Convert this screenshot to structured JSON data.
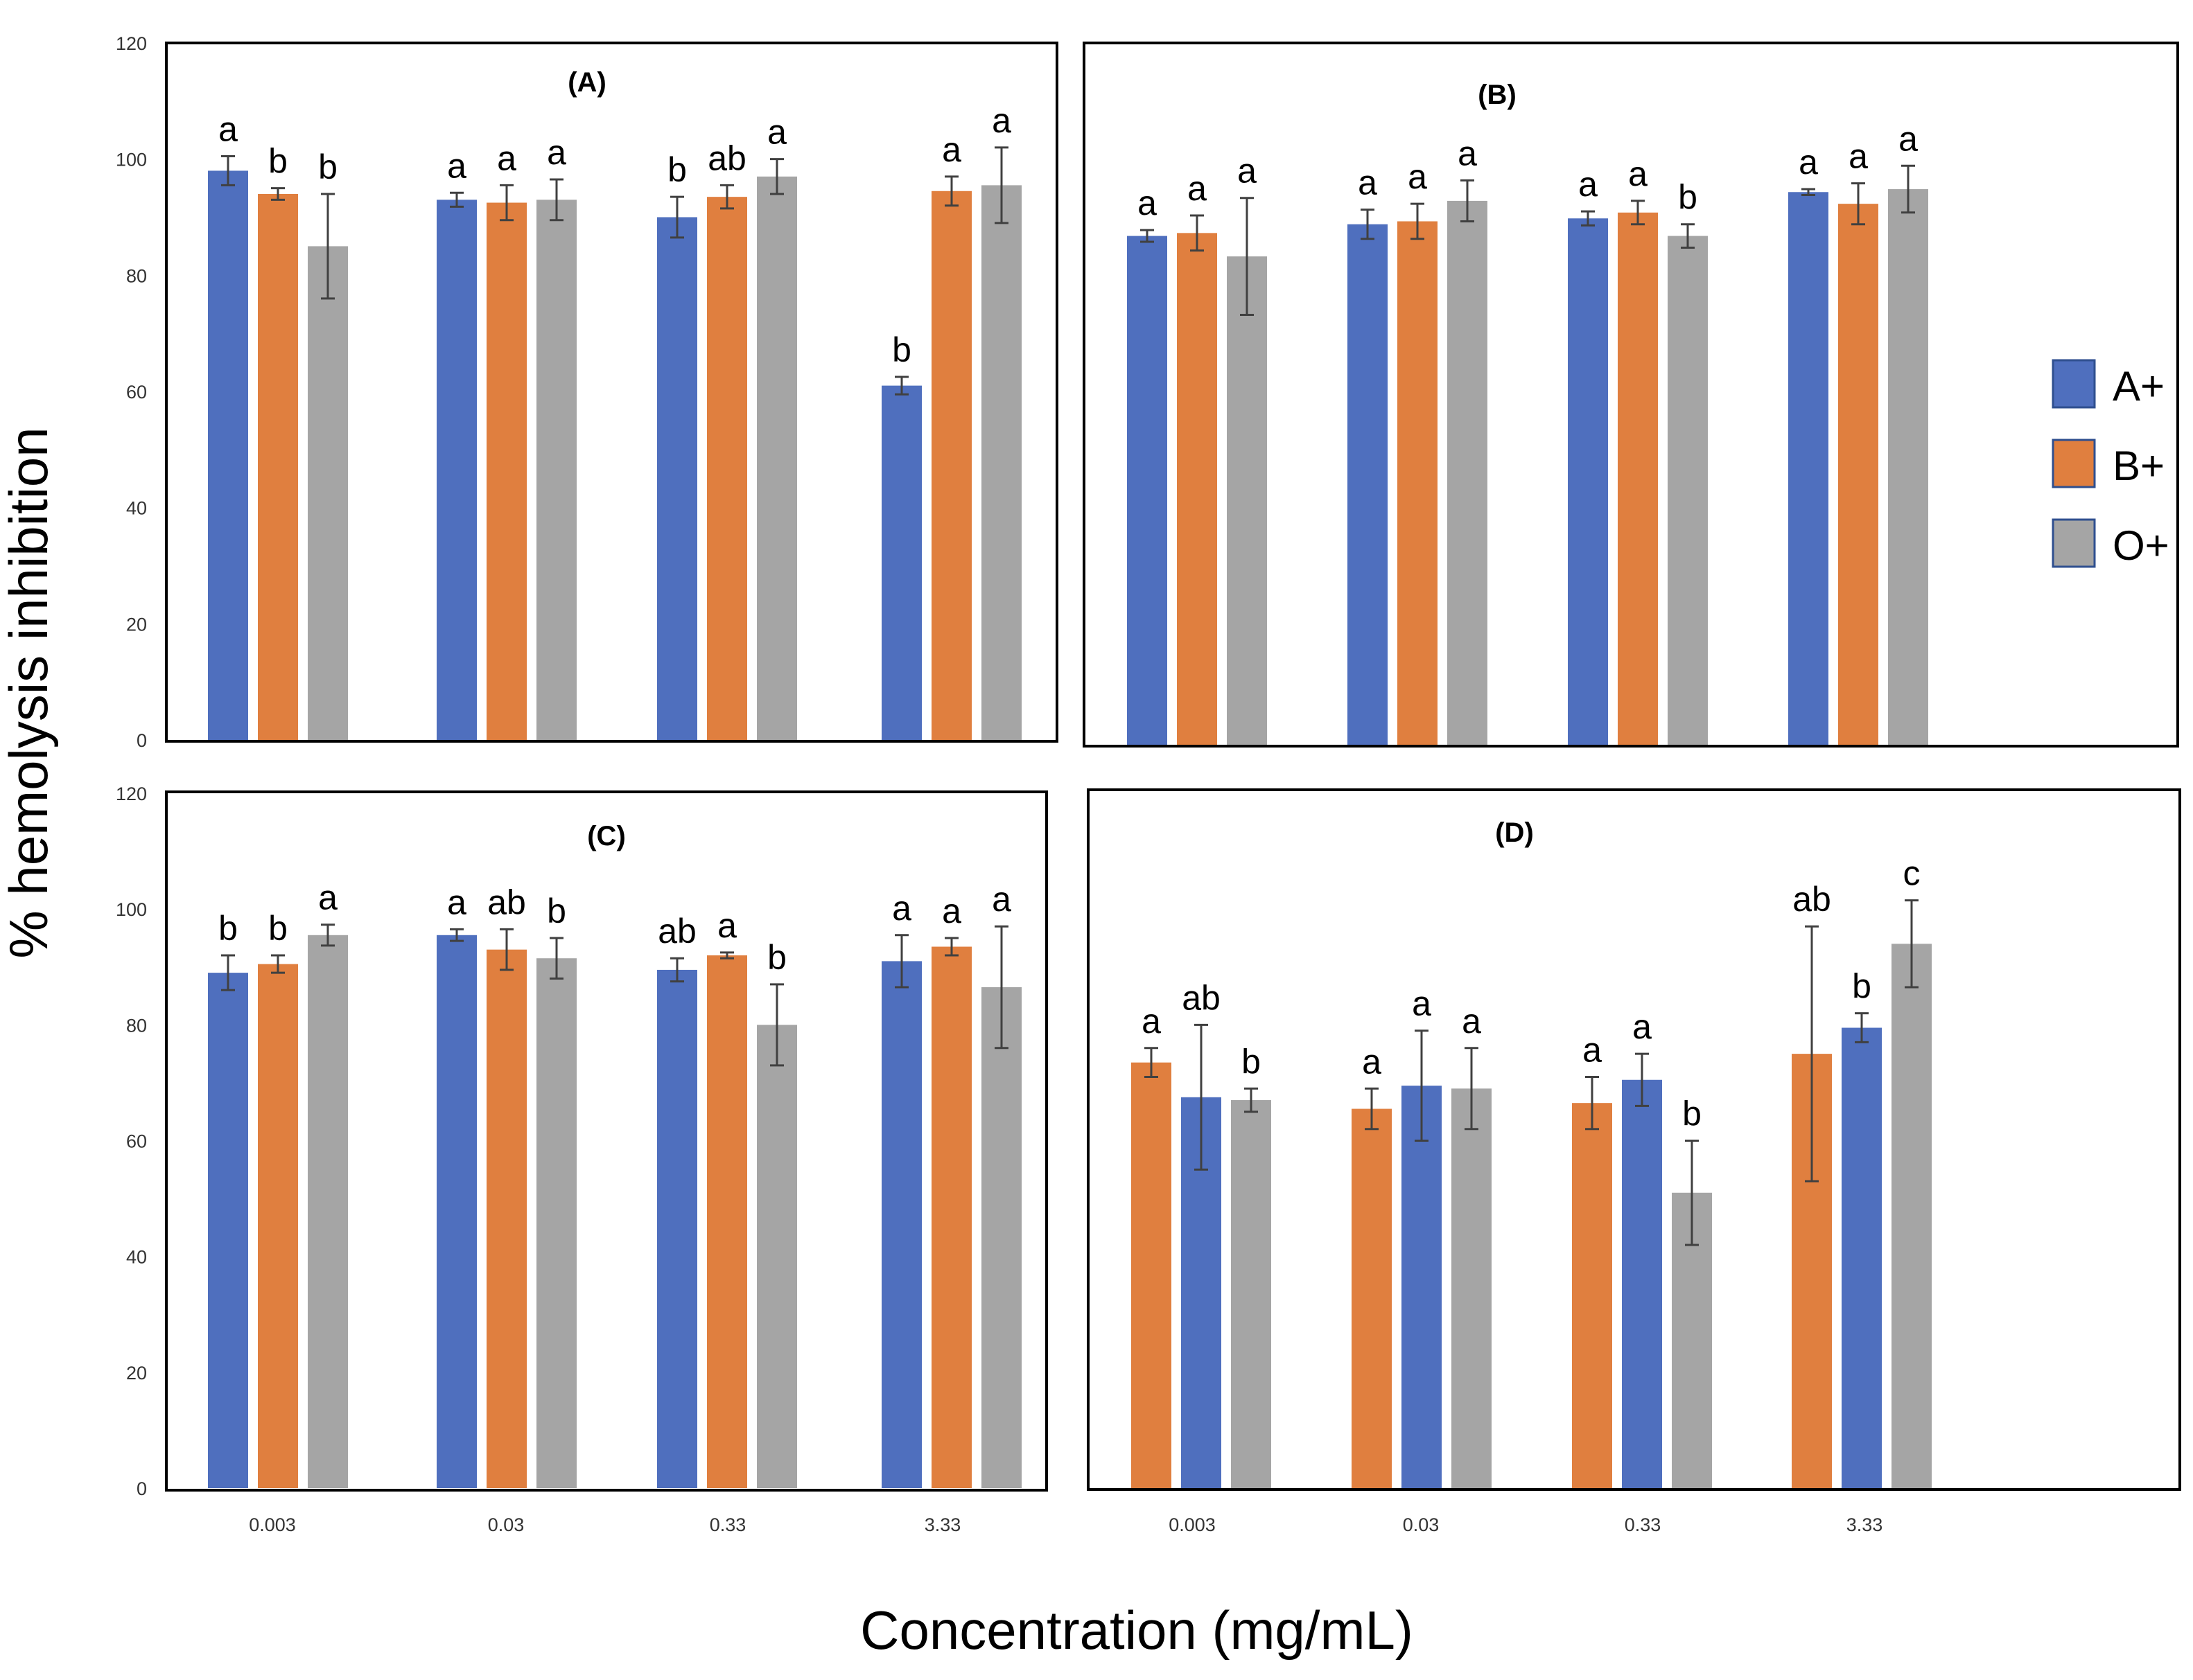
{
  "chart_data": {
    "type": "bar",
    "ylabel": "% hemolysis inhibition",
    "xlabel": "Concentration (mg/mL)",
    "ylim": [
      0,
      120
    ],
    "y_ticks": [
      "0",
      "20",
      "40",
      "60",
      "80",
      "100",
      "120"
    ],
    "categories": [
      "0.003",
      "0.03",
      "0.33",
      "3.33"
    ],
    "colors": {
      "A+": "#4f6fbe",
      "B+": "#e07f3f",
      "O+": "#a5a5a5"
    },
    "legend": [
      "A+",
      "B+",
      "O+"
    ],
    "panels": [
      {
        "title": "(A)",
        "bar_order": [
          "A+",
          "B+",
          "O+"
        ],
        "groups": [
          {
            "category": "0.003",
            "values": [
              98,
              94,
              85
            ],
            "errors": [
              2.5,
              1,
              9
            ],
            "letters": [
              "a",
              "b",
              "b"
            ]
          },
          {
            "category": "0.03",
            "values": [
              93,
              92.5,
              93
            ],
            "errors": [
              1.2,
              3,
              3.5
            ],
            "letters": [
              "a",
              "a",
              "a"
            ]
          },
          {
            "category": "0.33",
            "values": [
              90,
              93.5,
              97
            ],
            "errors": [
              3.5,
              2,
              3
            ],
            "letters": [
              "b",
              "ab",
              "a"
            ]
          },
          {
            "category": "3.33",
            "values": [
              61,
              94.5,
              95.5
            ],
            "errors": [
              1.5,
              2.5,
              6.5
            ],
            "letters": [
              "b",
              "a",
              "a"
            ]
          }
        ]
      },
      {
        "title": "(B)",
        "bar_order": [
          "A+",
          "B+",
          "O+"
        ],
        "groups": [
          {
            "category": "0.003",
            "values": [
              87,
              87.5,
              83.5
            ],
            "errors": [
              1,
              3,
              10
            ],
            "letters": [
              "a",
              "a",
              "a"
            ]
          },
          {
            "category": "0.03",
            "values": [
              89,
              89.5,
              93
            ],
            "errors": [
              2.5,
              3,
              3.5
            ],
            "letters": [
              "a",
              "a",
              "a"
            ]
          },
          {
            "category": "0.33",
            "values": [
              90,
              91,
              87
            ],
            "errors": [
              1.2,
              2,
              2
            ],
            "letters": [
              "a",
              "a",
              "b"
            ]
          },
          {
            "category": "3.33",
            "values": [
              94.5,
              92.5,
              95
            ],
            "errors": [
              0.5,
              3.5,
              4
            ],
            "letters": [
              "a",
              "a",
              "a"
            ]
          }
        ]
      },
      {
        "title": "(C)",
        "bar_order": [
          "A+",
          "B+",
          "O+"
        ],
        "groups": [
          {
            "category": "0.003",
            "values": [
              89,
              90.5,
              95.5
            ],
            "errors": [
              3,
              1.5,
              1.8
            ],
            "letters": [
              "b",
              "b",
              "a"
            ]
          },
          {
            "category": "0.03",
            "values": [
              95.5,
              93,
              91.5
            ],
            "errors": [
              1,
              3.5,
              3.5
            ],
            "letters": [
              "a",
              "ab",
              "b"
            ]
          },
          {
            "category": "0.33",
            "values": [
              89.5,
              92,
              80
            ],
            "errors": [
              2,
              0.5,
              7
            ],
            "letters": [
              "ab",
              "a",
              "b"
            ]
          },
          {
            "category": "3.33",
            "values": [
              91,
              93.5,
              86.5
            ],
            "errors": [
              4.5,
              1.5,
              10.5
            ],
            "letters": [
              "a",
              "a",
              "a"
            ]
          }
        ]
      },
      {
        "title": "(D)",
        "bar_order": [
          "B+",
          "A+",
          "O+"
        ],
        "groups": [
          {
            "category": "0.003",
            "values": [
              73.5,
              67.5,
              67
            ],
            "errors": [
              2.5,
              12.5,
              2
            ],
            "letters": [
              "a",
              "ab",
              "b"
            ]
          },
          {
            "category": "0.03",
            "values": [
              65.5,
              69.5,
              69
            ],
            "errors": [
              3.5,
              9.5,
              7
            ],
            "letters": [
              "a",
              "a",
              "a"
            ]
          },
          {
            "category": "0.33",
            "values": [
              66.5,
              70.5,
              51
            ],
            "errors": [
              4.5,
              4.5,
              9
            ],
            "letters": [
              "a",
              "a",
              "b"
            ]
          },
          {
            "category": "3.33",
            "values": [
              75,
              79.5,
              94
            ],
            "errors": [
              22,
              2.5,
              7.5
            ],
            "letters": [
              "ab",
              "b",
              "c"
            ]
          }
        ]
      }
    ]
  }
}
